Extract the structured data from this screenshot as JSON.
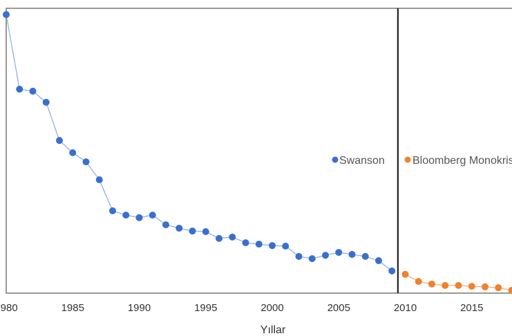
{
  "chart_data": {
    "type": "line",
    "title": "",
    "xlabel": "Yıllar",
    "ylabel": "",
    "xlim": [
      1980,
      2018
    ],
    "ylim": [
      0,
      100
    ],
    "y_tick_labels_shown": false,
    "grid": false,
    "legend_placement": "center-right",
    "x_ticks": [
      1980,
      1985,
      1990,
      1995,
      2000,
      2005,
      2010,
      2015
    ],
    "x_tick_labels": [
      "1980",
      "1985",
      "1990",
      "1995",
      "2000",
      "2005",
      "2010",
      "2015"
    ],
    "vertical_reference_line_x": 2009.5,
    "series": [
      {
        "name": "Swanson",
        "color": "#3a6fcf",
        "line_color": "#8fb0e8",
        "x": [
          1980,
          1981,
          1982,
          1983,
          1984,
          1985,
          1986,
          1987,
          1988,
          1989,
          1990,
          1991,
          1992,
          1993,
          1994,
          1995,
          1996,
          1997,
          1998,
          1999,
          2000,
          2001,
          2002,
          2003,
          2004,
          2005,
          2006,
          2007,
          2008,
          2009
        ],
        "y": [
          97.8,
          71.6,
          70.9,
          67.0,
          53.6,
          49.3,
          46.1,
          39.8,
          28.9,
          27.4,
          26.5,
          27.4,
          24.0,
          22.8,
          21.8,
          21.6,
          19.2,
          19.7,
          17.7,
          17.2,
          16.7,
          16.5,
          12.9,
          12.1,
          13.3,
          14.3,
          13.6,
          12.9,
          11.4,
          7.8
        ]
      },
      {
        "name": "Bloomberg Monokristal",
        "color": "#f0812d",
        "line_color": "#f5ad78",
        "x": [
          2010,
          2011,
          2012,
          2013,
          2014,
          2015,
          2016,
          2017,
          2018
        ],
        "y": [
          6.6,
          4.1,
          3.2,
          2.7,
          2.7,
          2.4,
          2.2,
          1.9,
          1.0
        ]
      }
    ]
  }
}
